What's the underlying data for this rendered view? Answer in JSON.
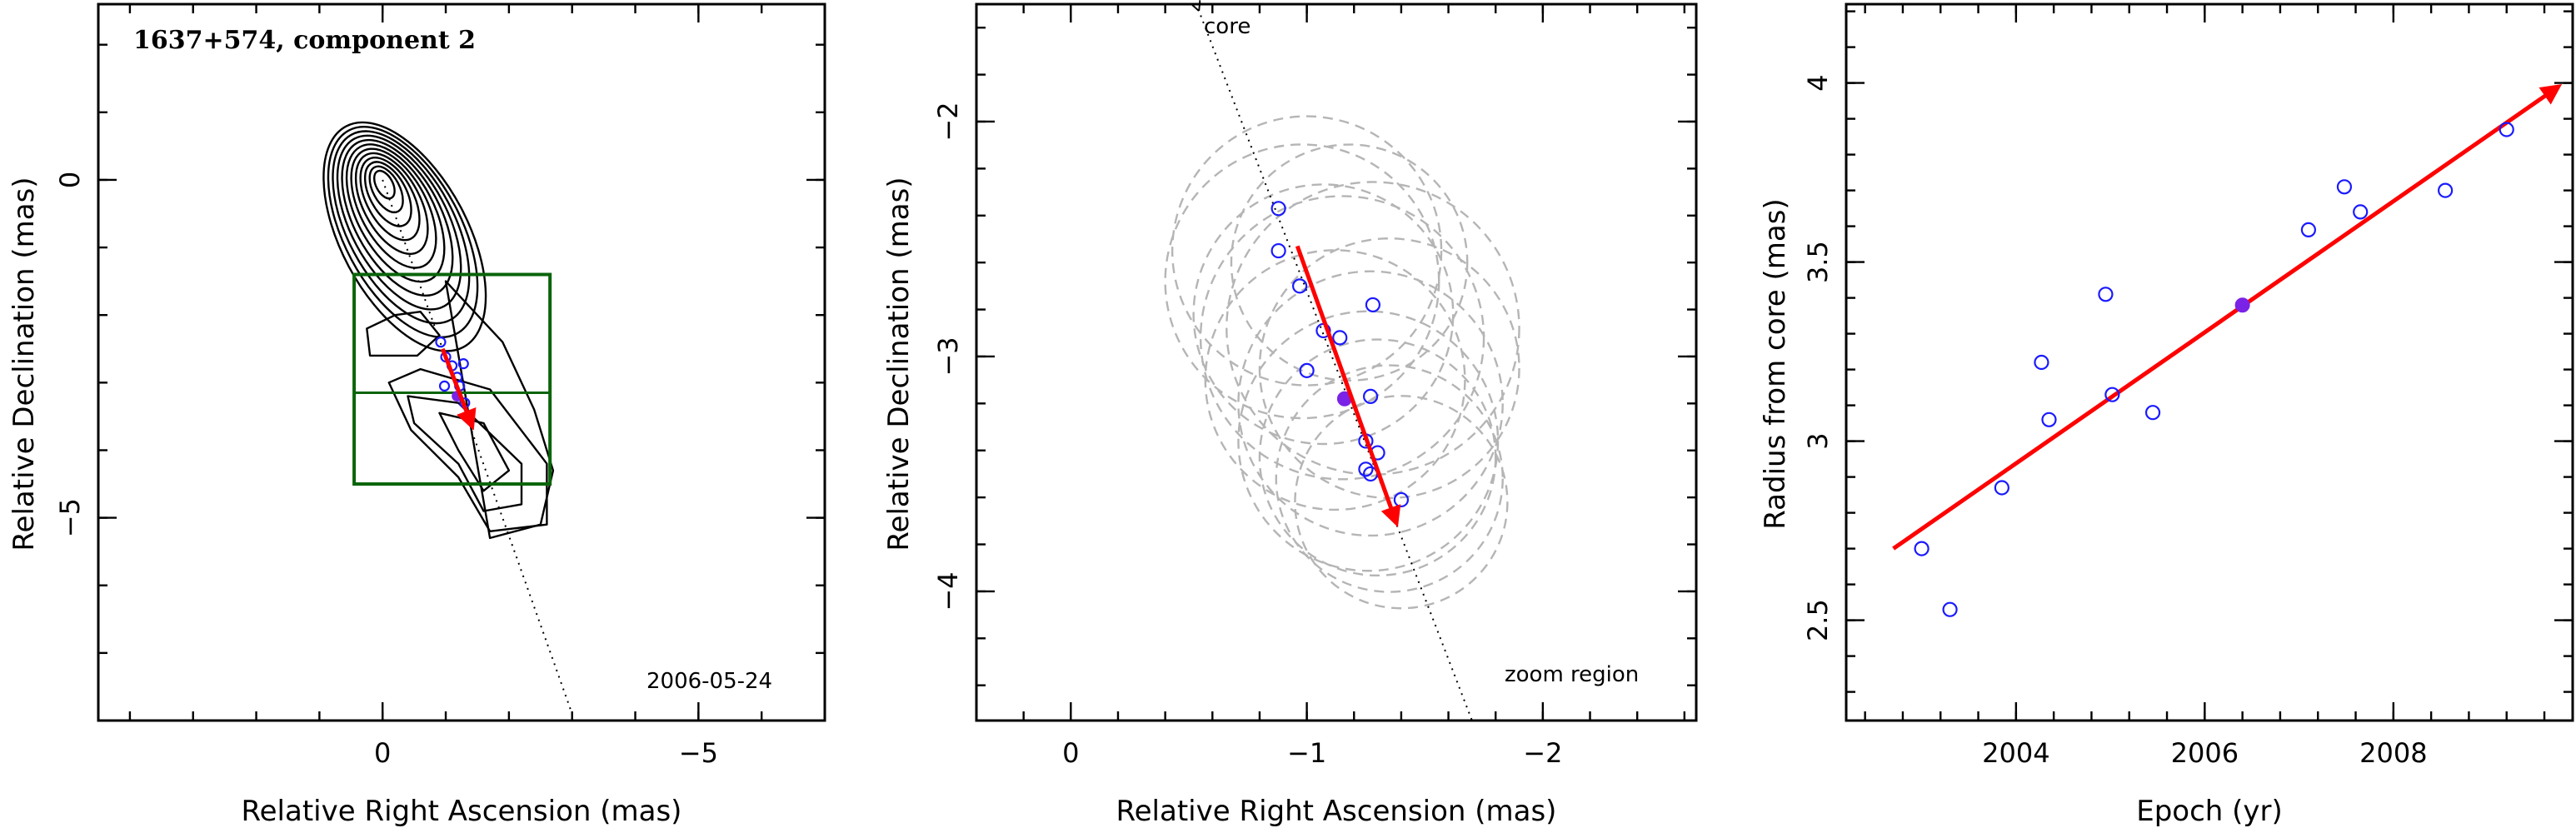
{
  "chart_data": [
    {
      "type": "scatter",
      "panel": "component map",
      "title": "1637+574, component 2",
      "date_label": "2006-05-24",
      "xlabel": "Relative Right Ascension (mas)",
      "ylabel": "Relative Declination (mas)",
      "xlim": [
        4.5,
        -7
      ],
      "ylim": [
        -8,
        2.6
      ],
      "xticks": [
        0,
        -5
      ],
      "yticks": [
        0,
        -5
      ],
      "xtick_labels": [
        "0",
        "−5"
      ],
      "ytick_labels": [
        "0",
        "−5"
      ],
      "core": [
        0,
        0
      ],
      "zoom_box": {
        "x": [
          0.45,
          -2.65
        ],
        "y": [
          -1.4,
          -4.5
        ]
      },
      "zoom_box_midline_y": -3.15,
      "points": [
        {
          "x": -0.92,
          "y": -2.4
        },
        {
          "x": -1.0,
          "y": -2.62
        },
        {
          "x": -1.1,
          "y": -2.75
        },
        {
          "x": -1.18,
          "y": -2.92
        },
        {
          "x": -1.22,
          "y": -3.05
        },
        {
          "x": -1.28,
          "y": -2.72
        },
        {
          "x": -1.3,
          "y": -3.3
        },
        {
          "x": -1.35,
          "y": -3.5
        },
        {
          "x": -0.98,
          "y": -3.05
        }
      ],
      "highlight_point": {
        "x": -1.18,
        "y": -3.2
      },
      "vector": {
        "from": [
          -0.95,
          -2.5
        ],
        "to": [
          -1.42,
          -3.65
        ]
      },
      "direction_line": {
        "from": [
          0,
          0
        ],
        "to": [
          -3,
          -7.9
        ]
      },
      "contour_levels": 12
    },
    {
      "type": "scatter",
      "panel": "zoom",
      "xlabel": "Relative Right Ascension (mas)",
      "ylabel": "Relative Declination (mas)",
      "xlim": [
        0.4,
        -2.65
      ],
      "ylim": [
        -4.55,
        -1.5
      ],
      "xticks": [
        0,
        -1,
        -2
      ],
      "yticks": [
        -2,
        -3,
        -4
      ],
      "xtick_labels": [
        "0",
        "−1",
        "−2"
      ],
      "ytick_labels": [
        "−2",
        "−3",
        "−4"
      ],
      "annotations": {
        "core": "core",
        "zoom": "zoom region"
      },
      "points": [
        {
          "x": -0.88,
          "y": -2.37
        },
        {
          "x": -0.88,
          "y": -2.55
        },
        {
          "x": -0.97,
          "y": -2.7
        },
        {
          "x": -1.07,
          "y": -2.89
        },
        {
          "x": -1.14,
          "y": -2.92
        },
        {
          "x": -1.28,
          "y": -2.78
        },
        {
          "x": -1.0,
          "y": -3.06
        },
        {
          "x": -1.27,
          "y": -3.17
        },
        {
          "x": -1.25,
          "y": -3.36
        },
        {
          "x": -1.3,
          "y": -3.41
        },
        {
          "x": -1.25,
          "y": -3.48
        },
        {
          "x": -1.27,
          "y": -3.5
        },
        {
          "x": -1.4,
          "y": -3.61
        }
      ],
      "highlight_point": {
        "x": -1.16,
        "y": -3.18
      },
      "beams": [
        {
          "x": -1.0,
          "y": -2.55,
          "r": 0.57
        },
        {
          "x": -0.98,
          "y": -2.68,
          "r": 0.58
        },
        {
          "x": -1.07,
          "y": -2.82,
          "r": 0.55
        },
        {
          "x": -1.15,
          "y": -2.92,
          "r": 0.6
        },
        {
          "x": -1.28,
          "y": -2.88,
          "r": 0.62
        },
        {
          "x": -1.12,
          "y": -3.1,
          "r": 0.55
        },
        {
          "x": -1.27,
          "y": -3.2,
          "r": 0.56
        },
        {
          "x": -1.26,
          "y": -3.36,
          "r": 0.55
        },
        {
          "x": -1.3,
          "y": -3.43,
          "r": 0.5
        },
        {
          "x": -1.35,
          "y": -3.52,
          "r": 0.48
        },
        {
          "x": -1.4,
          "y": -3.62,
          "r": 0.45
        },
        {
          "x": -1.18,
          "y": -2.6,
          "r": 0.5
        },
        {
          "x": -1.35,
          "y": -3.05,
          "r": 0.55
        }
      ],
      "vector": {
        "from": [
          -0.96,
          -2.53
        ],
        "to": [
          -1.38,
          -3.71
        ]
      },
      "direction_line": {
        "from": [
          -0.54,
          -1.5
        ],
        "to": [
          -1.7,
          -4.55
        ]
      }
    },
    {
      "type": "scatter",
      "panel": "radius vs epoch",
      "xlabel": "Epoch (yr)",
      "ylabel": "Radius from core (mas)",
      "xlim": [
        2002.2,
        2009.9
      ],
      "ylim": [
        2.22,
        4.22
      ],
      "xticks": [
        2004,
        2006,
        2008
      ],
      "yticks": [
        2.5,
        3,
        3.5,
        4
      ],
      "xtick_labels": [
        "2004",
        "2006",
        "2008"
      ],
      "ytick_labels": [
        "2.5",
        "3",
        "3.5",
        "4"
      ],
      "points": [
        {
          "x": 2003.0,
          "y": 2.7
        },
        {
          "x": 2003.3,
          "y": 2.53
        },
        {
          "x": 2003.85,
          "y": 2.87
        },
        {
          "x": 2004.27,
          "y": 3.22
        },
        {
          "x": 2004.35,
          "y": 3.06
        },
        {
          "x": 2004.95,
          "y": 3.41
        },
        {
          "x": 2005.02,
          "y": 3.13
        },
        {
          "x": 2005.45,
          "y": 3.08
        },
        {
          "x": 2007.1,
          "y": 3.59
        },
        {
          "x": 2007.48,
          "y": 3.71
        },
        {
          "x": 2007.65,
          "y": 3.64
        },
        {
          "x": 2008.55,
          "y": 3.7
        },
        {
          "x": 2009.2,
          "y": 3.87
        }
      ],
      "highlight_point": {
        "x": 2006.4,
        "y": 3.38
      },
      "fit_line": {
        "from": [
          2002.7,
          2.7
        ],
        "to": [
          2009.75,
          3.99
        ]
      }
    }
  ],
  "colors": {
    "points": "#1a1aff",
    "highlight": "#7a22e6",
    "vector": "#ff0000",
    "box": "#0a640a",
    "beams": "#b5b5b5"
  }
}
